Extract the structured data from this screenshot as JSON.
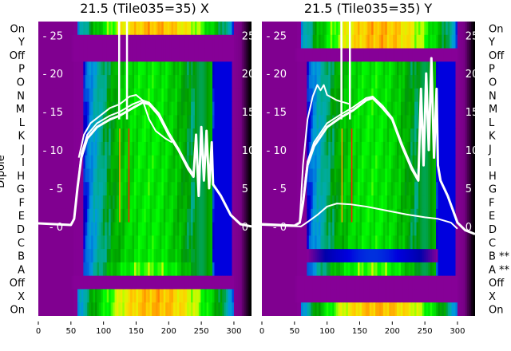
{
  "chart_data": [
    {
      "type": "heatmap",
      "title": "21.5 (Tile035=35) X",
      "ylabel": "Dipole",
      "xlim": [
        0,
        327
      ],
      "xticks": [
        "0",
        "50",
        "100",
        "150",
        "200",
        "250",
        "300"
      ],
      "row_labels": [
        "On",
        "Y",
        "Off",
        "P",
        "O",
        "N",
        "M",
        "L",
        "K",
        "J",
        "I",
        "H",
        "G",
        "F",
        "E",
        "D",
        "C",
        "B",
        "A",
        "Off",
        "X",
        "On"
      ],
      "row_kinds": [
        "on",
        "off",
        "off",
        "dipole",
        "dipole",
        "dipole",
        "dipole",
        "dipole",
        "dipole",
        "dipole",
        "dipole",
        "dipole",
        "dipole",
        "dipole",
        "dipole",
        "dipole",
        "dipole",
        "dipole",
        "bright",
        "off",
        "on",
        "on"
      ],
      "overlay_ylim": [
        -11.7,
        26.8
      ],
      "overlay_ticks": [
        "25",
        "20",
        "15",
        "10",
        "5",
        "0"
      ],
      "rfi_channels": [
        124,
        136
      ],
      "spectra": [
        [
          [
            0,
            0.4
          ],
          [
            50,
            0.2
          ],
          [
            55,
            1
          ],
          [
            60,
            5
          ],
          [
            66,
            9
          ],
          [
            75,
            11.5
          ],
          [
            90,
            13
          ],
          [
            110,
            14
          ],
          [
            125,
            14.5
          ],
          [
            145,
            15.5
          ],
          [
            160,
            16.2
          ],
          [
            170,
            16
          ],
          [
            185,
            14.5
          ],
          [
            200,
            12
          ],
          [
            215,
            10
          ],
          [
            230,
            7.5
          ],
          [
            238,
            6.5
          ],
          [
            242,
            12
          ],
          [
            246,
            4
          ],
          [
            250,
            13
          ],
          [
            254,
            6
          ],
          [
            258,
            12.5
          ],
          [
            262,
            5
          ],
          [
            266,
            11
          ],
          [
            268,
            5.5
          ],
          [
            280,
            4
          ],
          [
            295,
            1.5
          ],
          [
            310,
            0.3
          ],
          [
            327,
            0
          ]
        ],
        [
          [
            0,
            0.4
          ],
          [
            50,
            0.2
          ],
          [
            55,
            1
          ],
          [
            60,
            5
          ],
          [
            66,
            9.5
          ],
          [
            75,
            12
          ],
          [
            90,
            13.5
          ],
          [
            110,
            14.5
          ],
          [
            125,
            15
          ],
          [
            145,
            16
          ],
          [
            160,
            16.5
          ],
          [
            170,
            16.2
          ],
          [
            185,
            14.8
          ],
          [
            200,
            12.3
          ],
          [
            215,
            10.2
          ],
          [
            230,
            7.8
          ],
          [
            238,
            6.8
          ]
        ],
        [
          [
            62,
            9
          ],
          [
            70,
            12
          ],
          [
            80,
            13.5
          ],
          [
            95,
            14.5
          ],
          [
            110,
            15.5
          ],
          [
            125,
            16
          ],
          [
            140,
            17
          ],
          [
            150,
            17.2
          ],
          [
            160,
            16.5
          ],
          [
            170,
            14
          ],
          [
            180,
            12.5
          ],
          [
            195,
            11.5
          ],
          [
            205,
            11
          ]
        ]
      ]
    },
    {
      "type": "heatmap",
      "title": "21.5 (Tile035=35) Y",
      "xlim": [
        0,
        327
      ],
      "xticks": [
        "0",
        "50",
        "100",
        "150",
        "200",
        "250",
        "300"
      ],
      "row_labels": [
        "On",
        "Y",
        "Off",
        "P",
        "O",
        "N",
        "M",
        "L",
        "K",
        "J",
        "I",
        "H",
        "G",
        "F",
        "E",
        "D",
        "C",
        "B **",
        "A **",
        "Off",
        "X",
        "On"
      ],
      "row_kinds": [
        "on",
        "on",
        "off",
        "dipole",
        "dipole",
        "dipole",
        "dipole",
        "dipole",
        "dipole",
        "dipole",
        "dipole",
        "dipole",
        "dipole",
        "dipole",
        "dipole",
        "dipole",
        "dipole",
        "dim",
        "bright",
        "off",
        "off",
        "on"
      ],
      "overlay_ylim": [
        -11.7,
        26.8
      ],
      "overlay_ticks": [
        "25",
        "20",
        "15",
        "10",
        "5",
        "0"
      ],
      "rfi_channels": [
        122,
        135
      ],
      "spectra": [
        [
          [
            0,
            0.3
          ],
          [
            50,
            0.1
          ],
          [
            58,
            0.5
          ],
          [
            63,
            3
          ],
          [
            70,
            8
          ],
          [
            80,
            10.5
          ],
          [
            100,
            13
          ],
          [
            120,
            14.2
          ],
          [
            140,
            15.2
          ],
          [
            160,
            16.5
          ],
          [
            170,
            16.8
          ],
          [
            185,
            15.5
          ],
          [
            200,
            14
          ],
          [
            215,
            10.5
          ],
          [
            230,
            7.5
          ],
          [
            240,
            6
          ],
          [
            244,
            18
          ],
          [
            248,
            8
          ],
          [
            252,
            20
          ],
          [
            256,
            10
          ],
          [
            260,
            22
          ],
          [
            264,
            9
          ],
          [
            268,
            18
          ],
          [
            270,
            8
          ],
          [
            274,
            6
          ],
          [
            285,
            4
          ],
          [
            300,
            0.5
          ],
          [
            312,
            -0.5
          ],
          [
            327,
            -1
          ]
        ],
        [
          [
            0,
            0.3
          ],
          [
            50,
            0.1
          ],
          [
            58,
            0.5
          ],
          [
            63,
            3.5
          ],
          [
            70,
            8.5
          ],
          [
            80,
            11
          ],
          [
            100,
            13.5
          ],
          [
            120,
            14.6
          ],
          [
            140,
            15.6
          ],
          [
            160,
            16.8
          ],
          [
            170,
            17
          ],
          [
            185,
            15.8
          ],
          [
            200,
            14.2
          ],
          [
            215,
            10.8
          ],
          [
            230,
            7.8
          ],
          [
            240,
            6.2
          ]
        ],
        [
          [
            58,
            0.5
          ],
          [
            63,
            8
          ],
          [
            70,
            14
          ],
          [
            78,
            17
          ],
          [
            85,
            18.5
          ],
          [
            90,
            17.8
          ],
          [
            95,
            18.5
          ],
          [
            100,
            17.2
          ],
          [
            115,
            16.5
          ],
          [
            135,
            16
          ]
        ],
        [
          [
            0,
            0.2
          ],
          [
            60,
            0
          ],
          [
            72,
            0.7
          ],
          [
            85,
            1.5
          ],
          [
            100,
            2.6
          ],
          [
            115,
            3.0
          ],
          [
            135,
            2.9
          ],
          [
            160,
            2.6
          ],
          [
            190,
            2.1
          ],
          [
            220,
            1.6
          ],
          [
            250,
            1.2
          ],
          [
            270,
            1.0
          ],
          [
            290,
            0.5
          ],
          [
            300,
            -0.3
          ]
        ]
      ]
    }
  ],
  "colors": {
    "spectrum_line": "#ffffff",
    "rfi": "#ff2000"
  }
}
